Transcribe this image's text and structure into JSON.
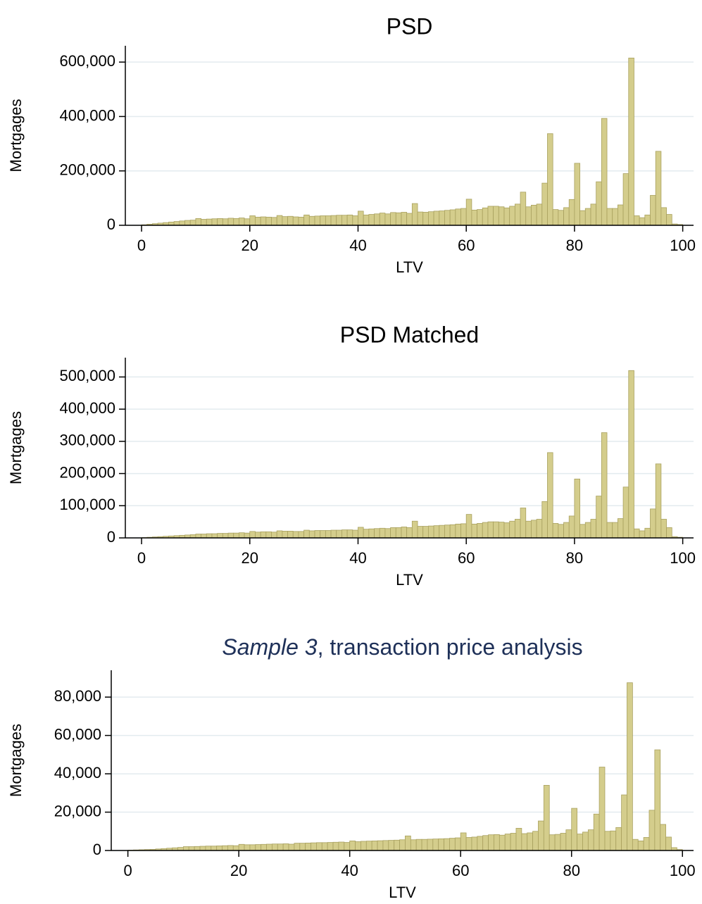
{
  "chart_data": [
    {
      "type": "histogram",
      "title": "PSD",
      "xlabel": "LTV",
      "ylabel": "Mortgages",
      "bins": [
        0,
        1,
        2,
        3,
        4,
        5,
        6,
        7,
        8,
        9,
        10,
        11,
        12,
        13,
        14,
        15,
        16,
        17,
        18,
        19,
        20,
        21,
        22,
        23,
        24,
        25,
        26,
        27,
        28,
        29,
        30,
        31,
        32,
        33,
        34,
        35,
        36,
        37,
        38,
        39,
        40,
        41,
        42,
        43,
        44,
        45,
        46,
        47,
        48,
        49,
        50,
        51,
        52,
        53,
        54,
        55,
        56,
        57,
        58,
        59,
        60,
        61,
        62,
        63,
        64,
        65,
        66,
        67,
        68,
        69,
        70,
        71,
        72,
        73,
        74,
        75,
        76,
        77,
        78,
        79,
        80,
        81,
        82,
        83,
        84,
        85,
        86,
        87,
        88,
        89,
        90,
        91,
        92,
        93,
        94,
        95,
        96,
        97,
        98,
        99,
        100
      ],
      "values": [
        2000,
        4000,
        6000,
        8000,
        10000,
        12000,
        14000,
        16000,
        18000,
        19000,
        25000,
        22000,
        23000,
        24000,
        25000,
        24000,
        26000,
        25000,
        27000,
        24000,
        35000,
        30000,
        31000,
        30000,
        29000,
        36000,
        32000,
        33000,
        31000,
        30000,
        38000,
        33000,
        34000,
        35000,
        35000,
        36000,
        37000,
        37000,
        38000,
        35000,
        52000,
        38000,
        40000,
        42000,
        45000,
        42000,
        47000,
        46000,
        48000,
        44000,
        80000,
        49000,
        48000,
        50000,
        52000,
        53000,
        55000,
        57000,
        60000,
        62000,
        96000,
        56000,
        58000,
        64000,
        70000,
        70000,
        68000,
        64000,
        70000,
        78000,
        122000,
        68000,
        74000,
        78000,
        155000,
        337000,
        58000,
        55000,
        65000,
        95000,
        228000,
        54000,
        62000,
        78000,
        160000,
        393000,
        62000,
        62000,
        75000,
        190000,
        615000,
        35000,
        28000,
        38000,
        110000,
        272000,
        65000,
        40000,
        5000,
        3000
      ],
      "color": "#d4cd8c",
      "xlim": [
        -3,
        102
      ],
      "ylim": [
        0,
        660000
      ],
      "xticks": [
        0,
        20,
        40,
        60,
        80,
        100
      ],
      "yticks": [
        0,
        {
          "value": 200000,
          "label": "200,000"
        },
        {
          "value": 400000,
          "label": "400,000"
        },
        {
          "value": 600000,
          "label": "600,000"
        }
      ],
      "grid": true
    },
    {
      "type": "histogram",
      "title": "PSD Matched",
      "xlabel": "LTV",
      "ylabel": "Mortgages",
      "bins": [
        0,
        1,
        2,
        3,
        4,
        5,
        6,
        7,
        8,
        9,
        10,
        11,
        12,
        13,
        14,
        15,
        16,
        17,
        18,
        19,
        20,
        21,
        22,
        23,
        24,
        25,
        26,
        27,
        28,
        29,
        30,
        31,
        32,
        33,
        34,
        35,
        36,
        37,
        38,
        39,
        40,
        41,
        42,
        43,
        44,
        45,
        46,
        47,
        48,
        49,
        50,
        51,
        52,
        53,
        54,
        55,
        56,
        57,
        58,
        59,
        60,
        61,
        62,
        63,
        64,
        65,
        66,
        67,
        68,
        69,
        70,
        71,
        72,
        73,
        74,
        75,
        76,
        77,
        78,
        79,
        80,
        81,
        82,
        83,
        84,
        85,
        86,
        87,
        88,
        89,
        90,
        91,
        92,
        93,
        94,
        95,
        96,
        97,
        98,
        99,
        100
      ],
      "values": [
        1000,
        2000,
        3000,
        4000,
        5000,
        6000,
        7000,
        8000,
        9000,
        10000,
        12000,
        12000,
        13000,
        13000,
        14000,
        14000,
        15000,
        15000,
        16000,
        15000,
        20000,
        18000,
        19000,
        19000,
        18000,
        22000,
        21000,
        21000,
        20000,
        20000,
        24000,
        22000,
        23000,
        23000,
        23000,
        24000,
        24000,
        25000,
        25000,
        24000,
        33000,
        27000,
        28000,
        29000,
        30000,
        29000,
        32000,
        32000,
        34000,
        32000,
        52000,
        36000,
        36000,
        37000,
        38000,
        39000,
        40000,
        41000,
        43000,
        44000,
        73000,
        43000,
        45000,
        48000,
        50000,
        50000,
        49000,
        47000,
        52000,
        58000,
        93000,
        52000,
        55000,
        58000,
        113000,
        265000,
        45000,
        42000,
        48000,
        68000,
        183000,
        42000,
        48000,
        58000,
        130000,
        327000,
        48000,
        48000,
        60000,
        158000,
        520000,
        28000,
        22000,
        30000,
        90000,
        230000,
        58000,
        32000,
        4000,
        2000
      ],
      "color": "#d4cd8c",
      "xlim": [
        -3,
        102
      ],
      "ylim": [
        0,
        560000
      ],
      "xticks": [
        0,
        20,
        40,
        60,
        80,
        100
      ],
      "yticks": [
        0,
        {
          "value": 100000,
          "label": "100,000"
        },
        {
          "value": 200000,
          "label": "200,000"
        },
        {
          "value": 300000,
          "label": "300,000"
        },
        {
          "value": 400000,
          "label": "400,000"
        },
        {
          "value": 500000,
          "label": "500,000"
        }
      ],
      "grid": true
    },
    {
      "type": "histogram",
      "title": [
        "Sample 3",
        ", transaction price analysis"
      ],
      "title_italic": [
        true,
        false
      ],
      "xlabel": "LTV",
      "ylabel": "Mortgages",
      "bins": [
        0,
        1,
        2,
        3,
        4,
        5,
        6,
        7,
        8,
        9,
        10,
        11,
        12,
        13,
        14,
        15,
        16,
        17,
        18,
        19,
        20,
        21,
        22,
        23,
        24,
        25,
        26,
        27,
        28,
        29,
        30,
        31,
        32,
        33,
        34,
        35,
        36,
        37,
        38,
        39,
        40,
        41,
        42,
        43,
        44,
        45,
        46,
        47,
        48,
        49,
        50,
        51,
        52,
        53,
        54,
        55,
        56,
        57,
        58,
        59,
        60,
        61,
        62,
        63,
        64,
        65,
        66,
        67,
        68,
        69,
        70,
        71,
        72,
        73,
        74,
        75,
        76,
        77,
        78,
        79,
        80,
        81,
        82,
        83,
        84,
        85,
        86,
        87,
        88,
        89,
        90,
        91,
        92,
        93,
        94,
        95,
        96,
        97,
        98,
        99,
        100
      ],
      "values": [
        200,
        300,
        400,
        500,
        600,
        800,
        1000,
        1200,
        1400,
        1600,
        2000,
        2000,
        2100,
        2200,
        2300,
        2300,
        2400,
        2500,
        2600,
        2500,
        3200,
        3000,
        3000,
        3100,
        3200,
        3300,
        3400,
        3400,
        3500,
        3300,
        3800,
        3800,
        3900,
        4000,
        4100,
        4100,
        4200,
        4300,
        4400,
        4200,
        5000,
        4600,
        4800,
        4900,
        5000,
        5100,
        5200,
        5300,
        5400,
        5600,
        7600,
        5600,
        5800,
        5800,
        5900,
        6000,
        6100,
        6200,
        6400,
        6600,
        9200,
        6800,
        7000,
        7400,
        7800,
        8200,
        8300,
        8000,
        8600,
        9000,
        11600,
        8800,
        9200,
        10000,
        15400,
        34000,
        8200,
        8400,
        9000,
        10800,
        22000,
        8600,
        9600,
        10800,
        19000,
        43500,
        10000,
        10200,
        12000,
        29000,
        87500,
        5800,
        5000,
        6800,
        21000,
        52500,
        13600,
        7000,
        1500,
        500
      ],
      "color": "#d4cd8c",
      "xlim": [
        -3,
        102
      ],
      "ylim": [
        0,
        94000
      ],
      "xticks": [
        0,
        20,
        40,
        60,
        80,
        100
      ],
      "yticks": [
        0,
        {
          "value": 20000,
          "label": "20,000"
        },
        {
          "value": 40000,
          "label": "40,000"
        },
        {
          "value": 60000,
          "label": "60,000"
        },
        {
          "value": 80000,
          "label": "80,000"
        }
      ],
      "grid": true
    }
  ]
}
